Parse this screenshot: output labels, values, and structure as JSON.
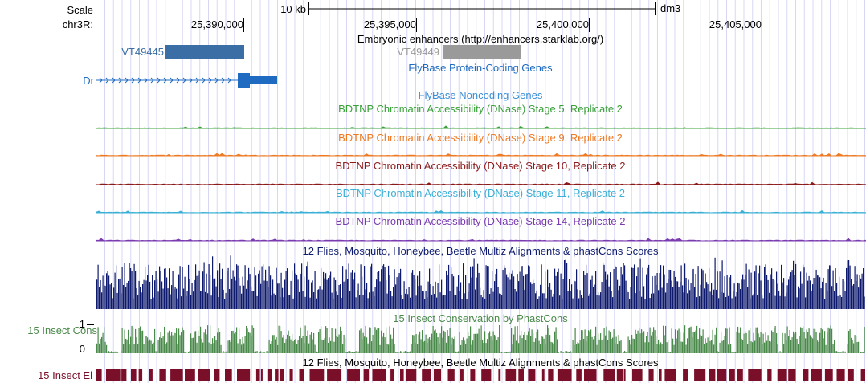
{
  "colors": {
    "grid": "#d7d7f5",
    "red_line": "#f4a0a0",
    "enhancer": "#3a6ea5",
    "enhancer_gray": "#9a9a9a",
    "gene": "#1f6bc1",
    "noncoding": "#3a8ed6",
    "stage5": "#3aa03a",
    "stage9": "#ee7a24",
    "stage10": "#8c1a1a",
    "stage11": "#3ab0d6",
    "stage14": "#7a3ab0",
    "multiz": "#0d1a6e",
    "cons": "#4a8a4a",
    "elements": "#7a0f2a"
  },
  "header": {
    "scale_label": "Scale",
    "chrom_label": "chr3R:",
    "scale_bar_label": "10 kb",
    "assembly": "dm3",
    "positions": [
      "25,390,000",
      "25,395,000",
      "25,400,000",
      "25,405,000"
    ]
  },
  "tracks": {
    "enhancers_title": "Embryonic enhancers (http://enhancers.starklab.org/)",
    "enhancer_a": "VT49445",
    "enhancer_b": "VT49449",
    "protein_genes_title": "FlyBase Protein-Coding Genes",
    "gene_label": "Dr",
    "noncoding_title": "FlyBase Noncoding Genes",
    "dnase_s5": "BDTNP Chromatin Accessibility (DNase) Stage 5, Replicate 2",
    "dnase_s9": "BDTNP Chromatin Accessibility (DNase) Stage 9, Replicate 2",
    "dnase_s10": "BDTNP Chromatin Accessibility (DNase) Stage 10, Replicate 2",
    "dnase_s11": "BDTNP Chromatin Accessibility (DNase) Stage 11, Replicate 2",
    "dnase_s14": "BDTNP Chromatin Accessibility (DNase) Stage 14, Replicate 2",
    "multiz_title": "12 Flies, Mosquito, Honeybee, Beetle Multiz Alignments & phastCons Scores",
    "cons_title": "15 Insect Conservation by PhastCons",
    "cons_side_label": "15 Insect Cons",
    "cons_max": "1",
    "cons_min": "0",
    "elements_title": "12 Flies, Mosquito, Honeybee, Beetle Multiz Alignments & phastCons Scores",
    "elements_side_label": "15 Insect El"
  }
}
